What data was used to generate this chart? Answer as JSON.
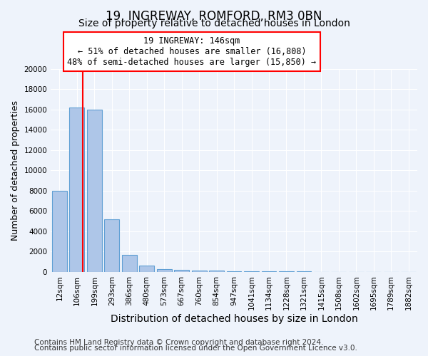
{
  "title1": "19, INGREWAY, ROMFORD, RM3 0BN",
  "title2": "Size of property relative to detached houses in London",
  "xlabel": "Distribution of detached houses by size in London",
  "ylabel": "Number of detached properties",
  "categories": [
    "12sqm",
    "106sqm",
    "199sqm",
    "293sqm",
    "386sqm",
    "480sqm",
    "573sqm",
    "667sqm",
    "760sqm",
    "854sqm",
    "947sqm",
    "1041sqm",
    "1134sqm",
    "1228sqm",
    "1321sqm",
    "1415sqm",
    "1508sqm",
    "1602sqm",
    "1695sqm",
    "1789sqm",
    "1882sqm"
  ],
  "bar_heights": [
    8000,
    16200,
    16000,
    5200,
    1700,
    600,
    300,
    200,
    150,
    100,
    80,
    60,
    50,
    40,
    30,
    20,
    15,
    10,
    8,
    5,
    3
  ],
  "bar_color": "#aec6e8",
  "bar_edge_color": "#5f9fd4",
  "vline_color": "red",
  "vline_x": 1.35,
  "annotation_text": "19 INGREWAY: 146sqm\n← 51% of detached houses are smaller (16,808)\n48% of semi-detached houses are larger (15,850) →",
  "annotation_box_color": "white",
  "annotation_box_edge": "red",
  "ylim": [
    0,
    20000
  ],
  "yticks": [
    0,
    2000,
    4000,
    6000,
    8000,
    10000,
    12000,
    14000,
    16000,
    18000,
    20000
  ],
  "footer1": "Contains HM Land Registry data © Crown copyright and database right 2024.",
  "footer2": "Contains public sector information licensed under the Open Government Licence v3.0.",
  "background_color": "#eef3fb",
  "plot_bg_color": "#eef3fb",
  "grid_color": "white",
  "title1_fontsize": 12,
  "title2_fontsize": 10,
  "xlabel_fontsize": 10,
  "ylabel_fontsize": 9,
  "tick_fontsize": 7.5,
  "footer_fontsize": 7.5
}
